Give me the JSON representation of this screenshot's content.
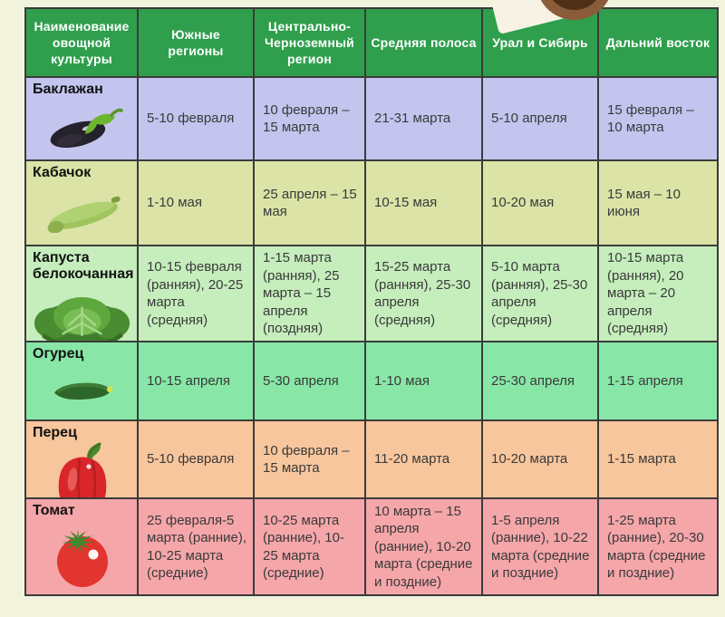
{
  "page": {
    "background": "#f2f3dd",
    "border_color": "#3b3b3b"
  },
  "decoration": {
    "pot_outer_color": "#8a5c39",
    "pot_inner_color": "#4e3018",
    "paper_color": "#f7f2e3"
  },
  "chart_data": {
    "type": "table",
    "header_bg": "#2f9f4d",
    "header_text_color": "#ffffff",
    "columns": [
      "Наименование овощной культуры",
      "Южные регионы",
      "Центрально-Черноземный регион",
      "Средняя полоса",
      "Урал и Сибирь",
      "Дальний восток"
    ],
    "rows": [
      {
        "name": "Баклажан",
        "icon": "eggplant-icon",
        "bg": "#c3c5ef",
        "values": [
          "5-10 февраля",
          "10 февраля – 15 марта",
          "21-31 марта",
          "5-10 апреля",
          "15 февраля – 10 марта"
        ]
      },
      {
        "name": "Кабачок",
        "icon": "zucchini-icon",
        "bg": "#dbe3a7",
        "values": [
          "1-10 мая",
          "25 апреля – 15 мая",
          "10-15 мая",
          "10-20 мая",
          "15 мая – 10 июня"
        ]
      },
      {
        "name": "Капуста белокочанная",
        "icon": "cabbage-icon",
        "bg": "#c5eebc",
        "values": [
          "10-15 февраля (ранняя), 20-25 марта (средняя)",
          "1-15 марта (ранняя), 25 марта – 15 апреля (поздняя)",
          "15-25 марта (ранняя), 25-30 апреля (средняя)",
          "5-10 марта (ранняя), 25-30 апреля (средняя)",
          "10-15 марта (ранняя), 20 марта – 20 апреля (средняя)"
        ]
      },
      {
        "name": "Огурец",
        "icon": "cucumber-icon",
        "bg": "#88e7a7",
        "values": [
          "10-15 апреля",
          "5-30 апреля",
          "1-10 мая",
          "25-30 апреля",
          "1-15 апреля"
        ]
      },
      {
        "name": "Перец",
        "icon": "pepper-icon",
        "bg": "#f8c69d",
        "values": [
          "5-10 февраля",
          "10 февраля – 15 марта",
          "11-20 марта",
          "10-20 марта",
          "1-15 марта"
        ]
      },
      {
        "name": "Томат",
        "icon": "tomato-icon",
        "bg": "#f5a6a9",
        "values": [
          "25 февраля-5 марта (ранние), 10-25 марта (средние)",
          "10-25 марта (ранние), 10-25 марта (средние)",
          "10 марта – 15 апреля (ранние), 10-20 марта (средние и поздние)",
          "1-5 апреля (ранние), 10-22 марта (средние и поздние)",
          "1-25 марта (ранние), 20-30 марта (средние и поздние)"
        ]
      }
    ]
  }
}
